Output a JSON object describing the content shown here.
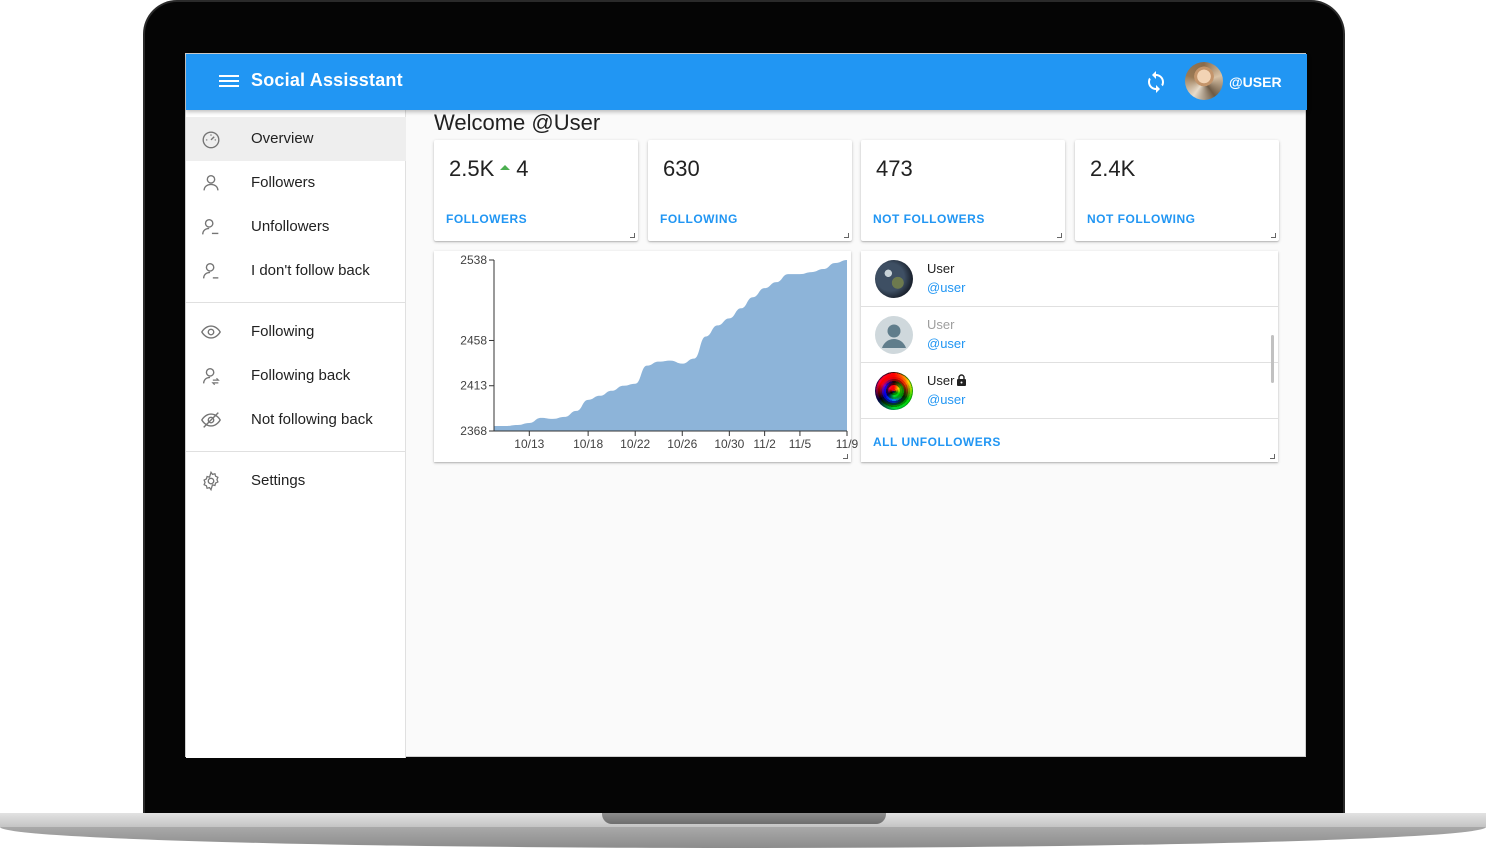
{
  "app": {
    "title": "Social Assisstant",
    "user_handle": "@USER",
    "accent_color": "#2196f3"
  },
  "sidebar": {
    "items": [
      {
        "label": "Overview",
        "icon": "speedometer-icon",
        "active": true
      },
      {
        "label": "Followers",
        "icon": "person-icon"
      },
      {
        "label": "Unfollowers",
        "icon": "person-search-icon"
      },
      {
        "label": "I don't follow back",
        "icon": "person-minus-icon"
      },
      {
        "label": "Following",
        "icon": "eye-icon"
      },
      {
        "label": "Following back",
        "icon": "person-sync-icon"
      },
      {
        "label": "Not following back",
        "icon": "eye-off-icon"
      },
      {
        "label": "Settings",
        "icon": "gear-icon"
      }
    ]
  },
  "main": {
    "welcome": "Welcome @User",
    "stats": [
      {
        "value": "2.5K",
        "delta": "4",
        "label": "FOLLOWERS"
      },
      {
        "value": "630",
        "label": "FOLLOWING"
      },
      {
        "value": "473",
        "label": "NOT FOLLOWERS"
      },
      {
        "value": "2.4K",
        "label": "NOT FOLLOWING"
      }
    ],
    "unfollowers": {
      "rows": [
        {
          "name": "User",
          "handle": "@user",
          "avatar": "earth-avatar",
          "private": false,
          "dim": false
        },
        {
          "name": "User",
          "handle": "@user",
          "avatar": "default-avatar",
          "private": false,
          "dim": true
        },
        {
          "name": "User",
          "handle": "@user",
          "avatar": "rainbow-avatar",
          "private": true,
          "dim": false
        }
      ],
      "all_link": "ALL UNFOLLOWERS"
    }
  },
  "chart_data": {
    "type": "area",
    "color": "#8db4d9",
    "x_ticks": [
      "10/13",
      "10/18",
      "10/22",
      "10/26",
      "10/30",
      "11/2",
      "11/5",
      "11/9"
    ],
    "y_ticks": [
      2368,
      2413,
      2458,
      2538
    ],
    "ylim": [
      2368,
      2538
    ],
    "x": [
      "10/10",
      "10/11",
      "10/12",
      "10/13",
      "10/14",
      "10/15",
      "10/16",
      "10/17",
      "10/18",
      "10/19",
      "10/20",
      "10/21",
      "10/22",
      "10/23",
      "10/24",
      "10/25",
      "10/26",
      "10/27",
      "10/28",
      "10/29",
      "10/30",
      "10/31",
      "11/1",
      "11/2",
      "11/3",
      "11/4",
      "11/5",
      "11/6",
      "11/7",
      "11/8",
      "11/9"
    ],
    "values": [
      2373,
      2373,
      2374,
      2376,
      2381,
      2380,
      2382,
      2388,
      2399,
      2403,
      2408,
      2413,
      2415,
      2433,
      2437,
      2438,
      2435,
      2440,
      2462,
      2473,
      2480,
      2490,
      2501,
      2510,
      2516,
      2524,
      2524,
      2526,
      2529,
      2535,
      2538
    ]
  }
}
